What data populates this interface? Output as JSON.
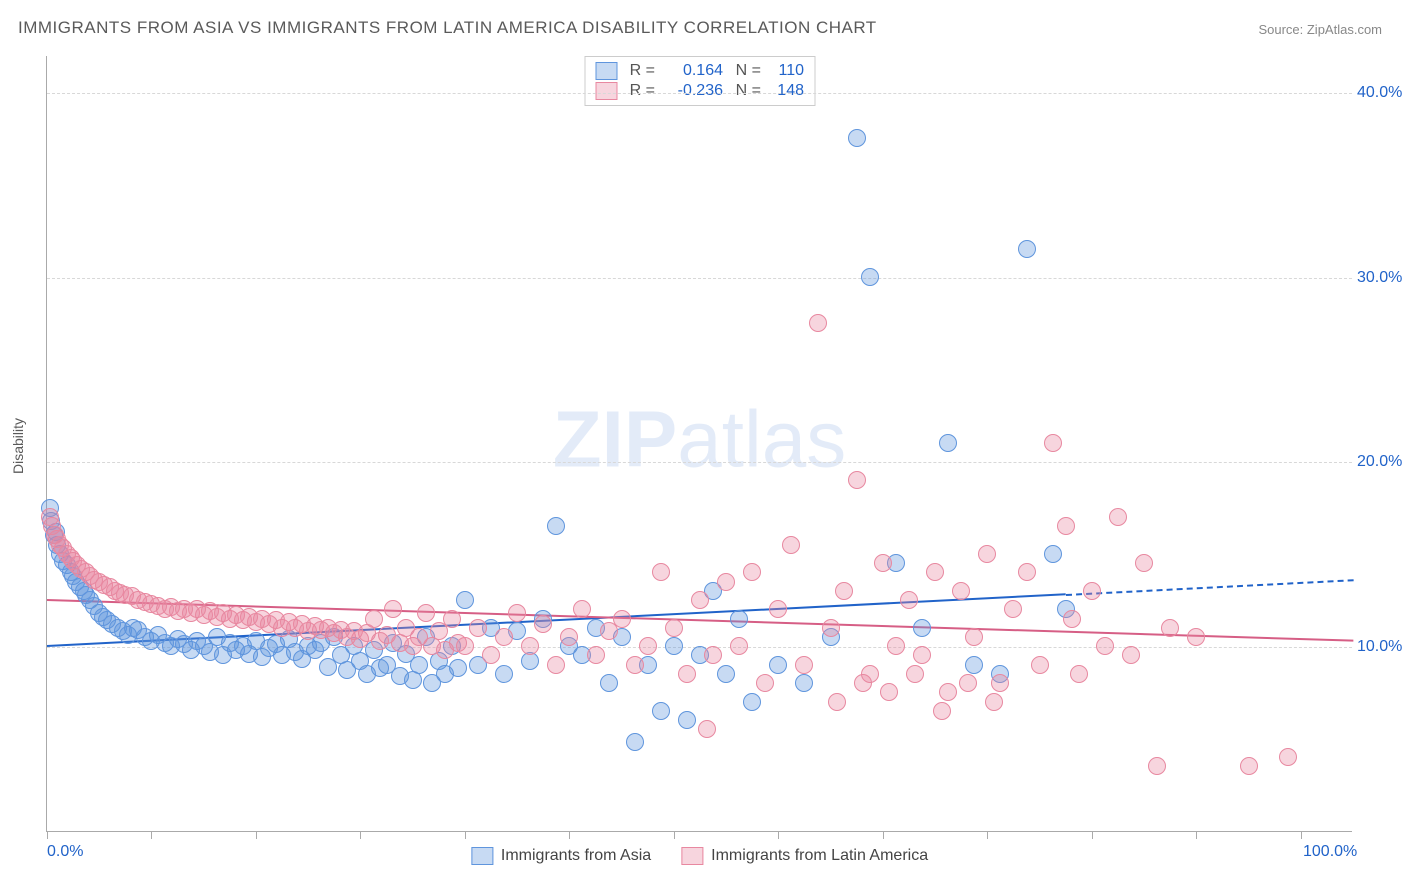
{
  "title": "IMMIGRANTS FROM ASIA VS IMMIGRANTS FROM LATIN AMERICA DISABILITY CORRELATION CHART",
  "source": "Source: ZipAtlas.com",
  "watermark_bold": "ZIP",
  "watermark_light": "atlas",
  "ylabel": "Disability",
  "chart": {
    "type": "scatter",
    "xlim": [
      0,
      100
    ],
    "ylim": [
      0,
      42
    ],
    "x_ticks_labeled": [
      {
        "v": 0,
        "label": "0.0%"
      },
      {
        "v": 100,
        "label": "100.0%"
      }
    ],
    "x_ticks_minor": [
      0,
      8,
      16,
      24,
      32,
      40,
      48,
      56,
      64,
      72,
      80,
      88,
      96
    ],
    "y_ticks": [
      {
        "v": 10,
        "label": "10.0%"
      },
      {
        "v": 20,
        "label": "20.0%"
      },
      {
        "v": 30,
        "label": "30.0%"
      },
      {
        "v": 40,
        "label": "40.0%"
      }
    ],
    "grid_color": "#d8d8d8",
    "background_color": "#ffffff",
    "axis_color": "#aaaaaa"
  },
  "series": [
    {
      "name": "Immigrants from Asia",
      "fill": "rgba(95,149,221,0.35)",
      "stroke": "#5f95dd",
      "line_color": "#2163c9",
      "R": "0.164",
      "N": "110",
      "trend": {
        "x1": 0,
        "y1": 10.1,
        "x2": 78,
        "y2": 12.9,
        "dash_x2": 100,
        "dash_y2": 13.7
      },
      "marker_radius": 9,
      "points": [
        [
          0.2,
          17.5
        ],
        [
          0.3,
          16.8
        ],
        [
          0.5,
          16.0
        ],
        [
          0.7,
          16.2
        ],
        [
          0.8,
          15.5
        ],
        [
          1.0,
          15.0
        ],
        [
          1.2,
          14.6
        ],
        [
          1.5,
          14.4
        ],
        [
          1.8,
          14.0
        ],
        [
          2.0,
          13.8
        ],
        [
          2.2,
          13.5
        ],
        [
          2.5,
          13.2
        ],
        [
          2.8,
          13.0
        ],
        [
          3.0,
          12.8
        ],
        [
          3.3,
          12.5
        ],
        [
          3.6,
          12.2
        ],
        [
          4.0,
          11.8
        ],
        [
          4.3,
          11.6
        ],
        [
          4.6,
          11.4
        ],
        [
          5.0,
          11.2
        ],
        [
          5.4,
          11.0
        ],
        [
          5.8,
          10.8
        ],
        [
          6.2,
          10.6
        ],
        [
          6.6,
          11.0
        ],
        [
          7.0,
          10.9
        ],
        [
          7.5,
          10.5
        ],
        [
          8.0,
          10.3
        ],
        [
          8.5,
          10.6
        ],
        [
          9.0,
          10.2
        ],
        [
          9.5,
          10.0
        ],
        [
          10.0,
          10.4
        ],
        [
          10.5,
          10.1
        ],
        [
          11.0,
          9.8
        ],
        [
          11.5,
          10.3
        ],
        [
          12.0,
          10.0
        ],
        [
          12.5,
          9.7
        ],
        [
          13.0,
          10.5
        ],
        [
          13.5,
          9.5
        ],
        [
          14.0,
          10.2
        ],
        [
          14.5,
          9.8
        ],
        [
          15.0,
          10.0
        ],
        [
          15.5,
          9.6
        ],
        [
          16.0,
          10.3
        ],
        [
          16.5,
          9.4
        ],
        [
          17.0,
          9.9
        ],
        [
          17.5,
          10.1
        ],
        [
          18.0,
          9.5
        ],
        [
          18.5,
          10.4
        ],
        [
          19.0,
          9.7
        ],
        [
          19.5,
          9.3
        ],
        [
          20.0,
          10.0
        ],
        [
          20.5,
          9.8
        ],
        [
          21.0,
          10.2
        ],
        [
          21.5,
          8.9
        ],
        [
          22.0,
          10.5
        ],
        [
          22.5,
          9.5
        ],
        [
          23.0,
          8.7
        ],
        [
          23.5,
          10.0
        ],
        [
          24.0,
          9.2
        ],
        [
          24.5,
          8.5
        ],
        [
          25.0,
          9.8
        ],
        [
          25.5,
          8.8
        ],
        [
          26.0,
          9.0
        ],
        [
          26.5,
          10.2
        ],
        [
          27.0,
          8.4
        ],
        [
          27.5,
          9.6
        ],
        [
          28.0,
          8.2
        ],
        [
          28.5,
          9.0
        ],
        [
          29.0,
          10.5
        ],
        [
          29.5,
          8.0
        ],
        [
          30.0,
          9.2
        ],
        [
          30.5,
          8.5
        ],
        [
          31.0,
          10.0
        ],
        [
          31.5,
          8.8
        ],
        [
          32.0,
          12.5
        ],
        [
          33.0,
          9.0
        ],
        [
          34.0,
          11.0
        ],
        [
          35.0,
          8.5
        ],
        [
          36.0,
          10.8
        ],
        [
          37.0,
          9.2
        ],
        [
          38.0,
          11.5
        ],
        [
          39.0,
          16.5
        ],
        [
          40.0,
          10.0
        ],
        [
          41.0,
          9.5
        ],
        [
          42.0,
          11.0
        ],
        [
          43.0,
          8.0
        ],
        [
          44.0,
          10.5
        ],
        [
          45.0,
          4.8
        ],
        [
          46.0,
          9.0
        ],
        [
          47.0,
          6.5
        ],
        [
          48.0,
          10.0
        ],
        [
          49.0,
          6.0
        ],
        [
          50.0,
          9.5
        ],
        [
          51.0,
          13.0
        ],
        [
          52.0,
          8.5
        ],
        [
          53.0,
          11.5
        ],
        [
          54.0,
          7.0
        ],
        [
          56.0,
          9.0
        ],
        [
          58.0,
          8.0
        ],
        [
          60.0,
          10.5
        ],
        [
          62.0,
          37.5
        ],
        [
          63.0,
          30.0
        ],
        [
          65.0,
          14.5
        ],
        [
          67.0,
          11.0
        ],
        [
          69.0,
          21.0
        ],
        [
          71.0,
          9.0
        ],
        [
          73.0,
          8.5
        ],
        [
          75.0,
          31.5
        ],
        [
          77.0,
          15.0
        ],
        [
          78.0,
          12.0
        ]
      ]
    },
    {
      "name": "Immigrants from Latin America",
      "fill": "rgba(232,136,160,0.35)",
      "stroke": "#e888a0",
      "line_color": "#d65e85",
      "R": "-0.236",
      "N": "148",
      "trend": {
        "x1": 0,
        "y1": 12.6,
        "x2": 100,
        "y2": 10.4
      },
      "marker_radius": 9,
      "points": [
        [
          0.2,
          17.0
        ],
        [
          0.4,
          16.5
        ],
        [
          0.6,
          16.0
        ],
        [
          0.8,
          15.8
        ],
        [
          1.0,
          15.5
        ],
        [
          1.2,
          15.3
        ],
        [
          1.5,
          15.0
        ],
        [
          1.8,
          14.8
        ],
        [
          2.0,
          14.6
        ],
        [
          2.3,
          14.4
        ],
        [
          2.6,
          14.2
        ],
        [
          3.0,
          14.0
        ],
        [
          3.3,
          13.8
        ],
        [
          3.6,
          13.6
        ],
        [
          4.0,
          13.5
        ],
        [
          4.4,
          13.3
        ],
        [
          4.8,
          13.2
        ],
        [
          5.2,
          13.0
        ],
        [
          5.6,
          12.9
        ],
        [
          6.0,
          12.8
        ],
        [
          6.5,
          12.7
        ],
        [
          7.0,
          12.5
        ],
        [
          7.5,
          12.4
        ],
        [
          8.0,
          12.3
        ],
        [
          8.5,
          12.2
        ],
        [
          9.0,
          12.0
        ],
        [
          9.5,
          12.1
        ],
        [
          10.0,
          11.9
        ],
        [
          10.5,
          12.0
        ],
        [
          11.0,
          11.8
        ],
        [
          11.5,
          12.0
        ],
        [
          12.0,
          11.7
        ],
        [
          12.5,
          11.9
        ],
        [
          13.0,
          11.6
        ],
        [
          13.5,
          11.8
        ],
        [
          14.0,
          11.5
        ],
        [
          14.5,
          11.7
        ],
        [
          15.0,
          11.4
        ],
        [
          15.5,
          11.6
        ],
        [
          16.0,
          11.3
        ],
        [
          16.5,
          11.5
        ],
        [
          17.0,
          11.2
        ],
        [
          17.5,
          11.4
        ],
        [
          18.0,
          11.0
        ],
        [
          18.5,
          11.3
        ],
        [
          19.0,
          11.0
        ],
        [
          19.5,
          11.2
        ],
        [
          20.0,
          10.8
        ],
        [
          20.5,
          11.1
        ],
        [
          21.0,
          10.9
        ],
        [
          21.5,
          11.0
        ],
        [
          22.0,
          10.7
        ],
        [
          22.5,
          10.9
        ],
        [
          23.0,
          10.5
        ],
        [
          23.5,
          10.8
        ],
        [
          24.0,
          10.4
        ],
        [
          24.5,
          10.7
        ],
        [
          25.0,
          11.5
        ],
        [
          25.5,
          10.3
        ],
        [
          26.0,
          10.6
        ],
        [
          26.5,
          12.0
        ],
        [
          27.0,
          10.2
        ],
        [
          27.5,
          11.0
        ],
        [
          28.0,
          10.0
        ],
        [
          28.5,
          10.5
        ],
        [
          29.0,
          11.8
        ],
        [
          29.5,
          10.0
        ],
        [
          30.0,
          10.8
        ],
        [
          30.5,
          9.8
        ],
        [
          31.0,
          11.5
        ],
        [
          31.5,
          10.2
        ],
        [
          32.0,
          10.0
        ],
        [
          33.0,
          11.0
        ],
        [
          34.0,
          9.5
        ],
        [
          35.0,
          10.5
        ],
        [
          36.0,
          11.8
        ],
        [
          37.0,
          10.0
        ],
        [
          38.0,
          11.2
        ],
        [
          39.0,
          9.0
        ],
        [
          40.0,
          10.5
        ],
        [
          41.0,
          12.0
        ],
        [
          42.0,
          9.5
        ],
        [
          43.0,
          10.8
        ],
        [
          44.0,
          11.5
        ],
        [
          45.0,
          9.0
        ],
        [
          46.0,
          10.0
        ],
        [
          47.0,
          14.0
        ],
        [
          48.0,
          11.0
        ],
        [
          49.0,
          8.5
        ],
        [
          50.0,
          12.5
        ],
        [
          51.0,
          9.5
        ],
        [
          52.0,
          13.5
        ],
        [
          53.0,
          10.0
        ],
        [
          54.0,
          14.0
        ],
        [
          55.0,
          8.0
        ],
        [
          56.0,
          12.0
        ],
        [
          57.0,
          15.5
        ],
        [
          58.0,
          9.0
        ],
        [
          59.0,
          27.5
        ],
        [
          60.0,
          11.0
        ],
        [
          61.0,
          13.0
        ],
        [
          62.0,
          19.0
        ],
        [
          63.0,
          8.5
        ],
        [
          64.0,
          14.5
        ],
        [
          65.0,
          10.0
        ],
        [
          66.0,
          12.5
        ],
        [
          67.0,
          9.5
        ],
        [
          68.0,
          14.0
        ],
        [
          69.0,
          7.5
        ],
        [
          70.0,
          13.0
        ],
        [
          71.0,
          10.5
        ],
        [
          72.0,
          15.0
        ],
        [
          73.0,
          8.0
        ],
        [
          74.0,
          12.0
        ],
        [
          75.0,
          14.0
        ],
        [
          76.0,
          9.0
        ],
        [
          77.0,
          21.0
        ],
        [
          78.0,
          16.5
        ],
        [
          78.5,
          11.5
        ],
        [
          79.0,
          8.5
        ],
        [
          80.0,
          13.0
        ],
        [
          81.0,
          10.0
        ],
        [
          82.0,
          17.0
        ],
        [
          83.0,
          9.5
        ],
        [
          84.0,
          14.5
        ],
        [
          85.0,
          3.5
        ],
        [
          86.0,
          11.0
        ],
        [
          88.0,
          10.5
        ],
        [
          92.0,
          3.5
        ],
        [
          95.0,
          4.0
        ],
        [
          60.5,
          7.0
        ],
        [
          62.5,
          8.0
        ],
        [
          64.5,
          7.5
        ],
        [
          66.5,
          8.5
        ],
        [
          68.5,
          6.5
        ],
        [
          70.5,
          8.0
        ],
        [
          72.5,
          7.0
        ],
        [
          50.5,
          5.5
        ]
      ]
    }
  ],
  "legend_bottom": [
    {
      "label": "Immigrants from Asia",
      "series": 0
    },
    {
      "label": "Immigrants from Latin America",
      "series": 1
    }
  ]
}
